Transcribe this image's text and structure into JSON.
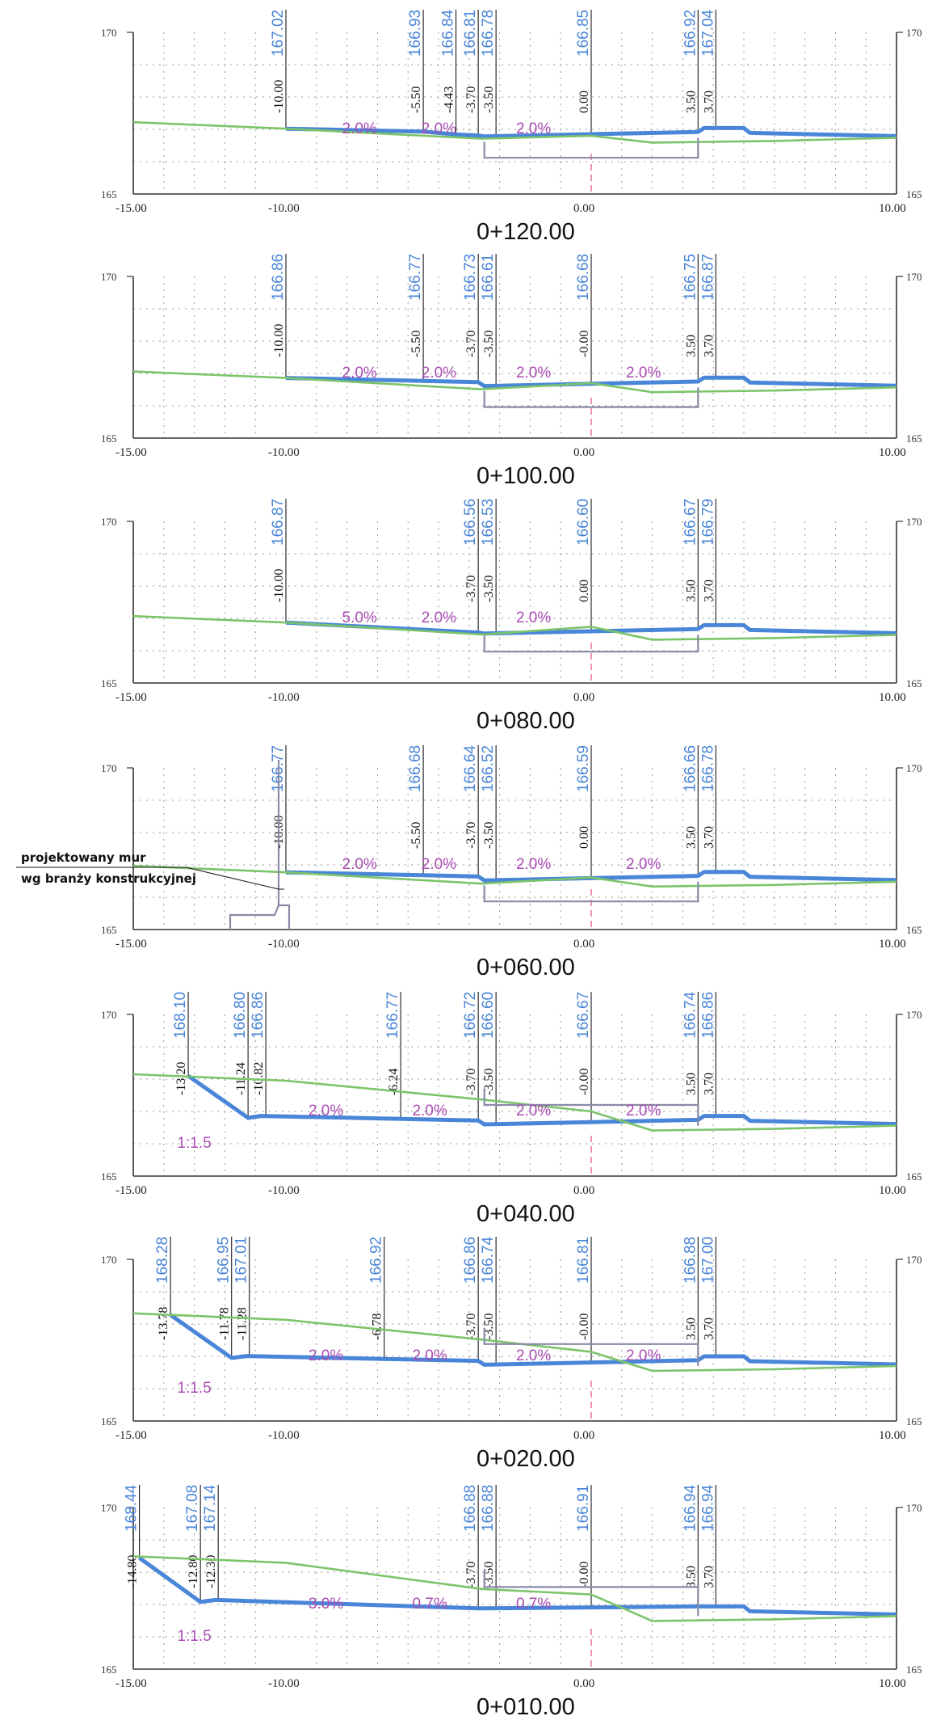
{
  "note": {
    "line1": "projektowany mur",
    "line2": "wg branży konstrukcyjnej"
  },
  "sections": [
    {
      "station": "0+120.00",
      "y_top": "170",
      "y_bottom": "165",
      "x_ticks": [
        "-15.00",
        "-10.00",
        "0.00",
        "10.00"
      ],
      "design_labels": [
        {
          "offset": "-10.00",
          "elev": "167.02"
        },
        {
          "offset": "-5.50",
          "elev": "166.93"
        },
        {
          "offset": "-4.43",
          "elev": "166.84"
        },
        {
          "offset": "-3.70",
          "elev": "166.81"
        },
        {
          "offset": "-3.50",
          "elev": "166.78"
        },
        {
          "offset": "0.00",
          "elev": "166.85"
        },
        {
          "offset": "3.50",
          "elev": "166.92"
        },
        {
          "offset": "3.70",
          "elev": "167.04"
        }
      ],
      "slopes": [
        "2.0%",
        "2.0%",
        "2.0%"
      ]
    },
    {
      "station": "0+100.00",
      "y_top": "170",
      "y_bottom": "165",
      "x_ticks": [
        "-15.00",
        "-10.00",
        "0.00",
        "10.00"
      ],
      "design_labels": [
        {
          "offset": "-10.00",
          "elev": "166.86"
        },
        {
          "offset": "-5.50",
          "elev": "166.77"
        },
        {
          "offset": "-3.70",
          "elev": "166.73"
        },
        {
          "offset": "-3.50",
          "elev": "166.61"
        },
        {
          "offset": "-0.00",
          "elev": "166.68"
        },
        {
          "offset": "3.50",
          "elev": "166.75"
        },
        {
          "offset": "3.70",
          "elev": "166.87"
        }
      ],
      "slopes": [
        "2.0%",
        "2.0%",
        "2.0%",
        "2.0%"
      ]
    },
    {
      "station": "0+080.00",
      "y_top": "170",
      "y_bottom": "165",
      "x_ticks": [
        "-15.00",
        "-10.00",
        "0.00",
        "10.00"
      ],
      "design_labels": [
        {
          "offset": "-10.00",
          "elev": "166.87"
        },
        {
          "offset": "-3.70",
          "elev": "166.56"
        },
        {
          "offset": "-3.50",
          "elev": "166.53"
        },
        {
          "offset": "0.00",
          "elev": "166.60"
        },
        {
          "offset": "3.50",
          "elev": "166.67"
        },
        {
          "offset": "3.70",
          "elev": "166.79"
        }
      ],
      "slopes": [
        "5.0%",
        "2.0%",
        "2.0%"
      ]
    },
    {
      "station": "0+060.00",
      "y_top": "170",
      "y_bottom": "165",
      "x_ticks": [
        "-15.00",
        "-10.00",
        "0.00",
        "10.00"
      ],
      "design_labels": [
        {
          "offset": "-10.00",
          "elev": "166.77"
        },
        {
          "offset": "-5.50",
          "elev": "166.68"
        },
        {
          "offset": "-3.70",
          "elev": "166.64"
        },
        {
          "offset": "-3.50",
          "elev": "166.52"
        },
        {
          "offset": "0.00",
          "elev": "166.59"
        },
        {
          "offset": "3.50",
          "elev": "166.66"
        },
        {
          "offset": "3.70",
          "elev": "166.78"
        }
      ],
      "slopes": [
        "2.0%",
        "2.0%",
        "2.0%",
        "2.0%"
      ]
    },
    {
      "station": "0+040.00",
      "y_top": "170",
      "y_bottom": "165",
      "x_ticks": [
        "-15.00",
        "-10.00",
        "0.00",
        "10.00"
      ],
      "design_labels": [
        {
          "offset": "-13.20",
          "elev": "168.10"
        },
        {
          "offset": "-11.24",
          "elev": "166.80"
        },
        {
          "offset": "-10.82",
          "elev": "166.86"
        },
        {
          "offset": "-6.24",
          "elev": "166.77"
        },
        {
          "offset": "-3.70",
          "elev": "166.72"
        },
        {
          "offset": "-3.50",
          "elev": "166.60"
        },
        {
          "offset": "-0.00",
          "elev": "166.67"
        },
        {
          "offset": "3.50",
          "elev": "166.74"
        },
        {
          "offset": "3.70",
          "elev": "166.86"
        }
      ],
      "slopes": [
        "1:1.5",
        "2.0%",
        "2.0%",
        "2.0%",
        "2.0%"
      ]
    },
    {
      "station": "0+020.00",
      "y_top": "170",
      "y_bottom": "165",
      "x_ticks": [
        "-15.00",
        "-10.00",
        "0.00",
        "10.00"
      ],
      "design_labels": [
        {
          "offset": "-13.78",
          "elev": "168.28"
        },
        {
          "offset": "-11.78",
          "elev": "166.95"
        },
        {
          "offset": "-11.28",
          "elev": "167.01"
        },
        {
          "offset": "-6.78",
          "elev": "166.92"
        },
        {
          "offset": "-3.70",
          "elev": "166.86"
        },
        {
          "offset": "-3.50",
          "elev": "166.74"
        },
        {
          "offset": "-0.00",
          "elev": "166.81"
        },
        {
          "offset": "3.50",
          "elev": "166.88"
        },
        {
          "offset": "3.70",
          "elev": "167.00"
        }
      ],
      "slopes": [
        "1:1.5",
        "2.0%",
        "2.0%",
        "2.0%",
        "2.0%"
      ]
    },
    {
      "station": "0+010.00",
      "y_top": "170",
      "y_bottom": "165",
      "x_ticks": [
        "-15.00",
        "-10.00",
        "0.00",
        "10.00"
      ],
      "design_labels": [
        {
          "offset": "-14.80",
          "elev": "168.44"
        },
        {
          "offset": "-12.80",
          "elev": "167.08"
        },
        {
          "offset": "-12.30",
          "elev": "167.14"
        },
        {
          "offset": "-3.70",
          "elev": "166.88"
        },
        {
          "offset": "-3.50",
          "elev": "166.88"
        },
        {
          "offset": "-0.00",
          "elev": "166.91"
        },
        {
          "offset": "3.50",
          "elev": "166.94"
        },
        {
          "offset": "3.70",
          "elev": "166.94"
        }
      ],
      "slopes": [
        "1:1.5",
        "3.0%",
        "0.7%",
        "0.7%"
      ]
    }
  ]
}
